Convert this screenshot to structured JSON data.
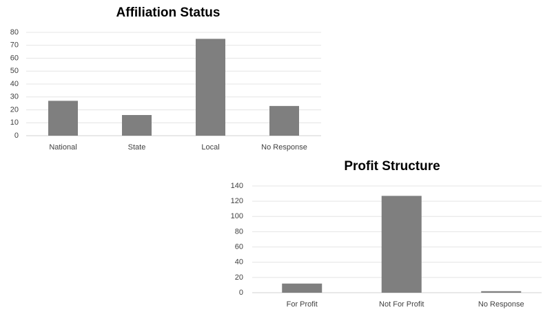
{
  "chart_data": [
    {
      "type": "bar",
      "title": "Affiliation Status",
      "categories": [
        "National",
        "State",
        "Local",
        "No Response"
      ],
      "values": [
        27,
        16,
        75,
        23
      ],
      "color": "#7f7f7f",
      "ylim": [
        0,
        80
      ],
      "yticks": [
        0,
        10,
        20,
        30,
        40,
        50,
        60,
        70,
        80
      ],
      "grid": true
    },
    {
      "type": "bar",
      "title": "Profit Structure",
      "categories": [
        "For Profit",
        "Not For Profit",
        "No Response"
      ],
      "values": [
        12,
        127,
        2
      ],
      "color": "#7f7f7f",
      "ylim": [
        0,
        140
      ],
      "yticks": [
        0,
        20,
        40,
        60,
        80,
        100,
        120,
        140
      ],
      "grid": true
    }
  ]
}
